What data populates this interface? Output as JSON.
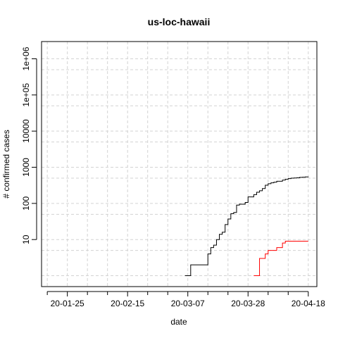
{
  "chart_data": {
    "type": "line",
    "title": "us-loc-hawaii",
    "xlabel": "date",
    "ylabel": "# confirmed cases",
    "y_scale": "log",
    "xlim": [
      "2020-01-16",
      "2020-04-21"
    ],
    "ylim": [
      0.5,
      3000000
    ],
    "x_ticks": [
      {
        "date": "2020-01-25",
        "label": "20-01-25"
      },
      {
        "date": "2020-02-15",
        "label": "20-02-15"
      },
      {
        "date": "2020-03-07",
        "label": "20-03-07"
      },
      {
        "date": "2020-03-28",
        "label": "20-03-28"
      },
      {
        "date": "2020-04-18",
        "label": "20-04-18"
      }
    ],
    "x_minor_ticks": [
      "2020-01-18",
      "2020-02-01",
      "2020-02-08",
      "2020-02-22",
      "2020-02-29",
      "2020-03-14",
      "2020-03-21",
      "2020-04-04",
      "2020-04-11"
    ],
    "y_ticks": [
      {
        "value": 10,
        "label": "10"
      },
      {
        "value": 100,
        "label": "100"
      },
      {
        "value": 1000,
        "label": "1000"
      },
      {
        "value": 10000,
        "label": "10000"
      },
      {
        "value": 100000,
        "label": "1e+05"
      },
      {
        "value": 1000000,
        "label": "1e+06"
      }
    ],
    "y_minor_grid": [
      1,
      5,
      50,
      500,
      5000,
      50000,
      500000
    ],
    "grid": true,
    "series": [
      {
        "color": "#000000",
        "points": [
          [
            "2020-03-06",
            1
          ],
          [
            "2020-03-07",
            1
          ],
          [
            "2020-03-08",
            2
          ],
          [
            "2020-03-11",
            2
          ],
          [
            "2020-03-12",
            2
          ],
          [
            "2020-03-13",
            2
          ],
          [
            "2020-03-14",
            4
          ],
          [
            "2020-03-15",
            6
          ],
          [
            "2020-03-16",
            7
          ],
          [
            "2020-03-17",
            10
          ],
          [
            "2020-03-18",
            14
          ],
          [
            "2020-03-19",
            16
          ],
          [
            "2020-03-20",
            26
          ],
          [
            "2020-03-21",
            37
          ],
          [
            "2020-03-22",
            52
          ],
          [
            "2020-03-23",
            56
          ],
          [
            "2020-03-24",
            90
          ],
          [
            "2020-03-25",
            95
          ],
          [
            "2020-03-26",
            95
          ],
          [
            "2020-03-27",
            106
          ],
          [
            "2020-03-28",
            151
          ],
          [
            "2020-03-29",
            151
          ],
          [
            "2020-03-30",
            175
          ],
          [
            "2020-03-31",
            204
          ],
          [
            "2020-04-01",
            224
          ],
          [
            "2020-04-02",
            258
          ],
          [
            "2020-04-03",
            319
          ],
          [
            "2020-04-04",
            351
          ],
          [
            "2020-04-05",
            371
          ],
          [
            "2020-04-06",
            387
          ],
          [
            "2020-04-07",
            410
          ],
          [
            "2020-04-08",
            410
          ],
          [
            "2020-04-09",
            442
          ],
          [
            "2020-04-10",
            465
          ],
          [
            "2020-04-11",
            486
          ],
          [
            "2020-04-12",
            499
          ],
          [
            "2020-04-13",
            504
          ],
          [
            "2020-04-14",
            511
          ],
          [
            "2020-04-15",
            524
          ],
          [
            "2020-04-16",
            530
          ],
          [
            "2020-04-17",
            541
          ],
          [
            "2020-04-18",
            553
          ]
        ]
      },
      {
        "color": "#ff0000",
        "points": [
          [
            "2020-03-30",
            1
          ],
          [
            "2020-03-31",
            1
          ],
          [
            "2020-04-01",
            3
          ],
          [
            "2020-04-02",
            3
          ],
          [
            "2020-04-03",
            4
          ],
          [
            "2020-04-04",
            5
          ],
          [
            "2020-04-05",
            5
          ],
          [
            "2020-04-06",
            5
          ],
          [
            "2020-04-07",
            6
          ],
          [
            "2020-04-08",
            6
          ],
          [
            "2020-04-09",
            8
          ],
          [
            "2020-04-10",
            9
          ],
          [
            "2020-04-11",
            9
          ],
          [
            "2020-04-12",
            9
          ],
          [
            "2020-04-13",
            9
          ],
          [
            "2020-04-14",
            9
          ],
          [
            "2020-04-15",
            9
          ],
          [
            "2020-04-16",
            9
          ],
          [
            "2020-04-17",
            9
          ],
          [
            "2020-04-18",
            9
          ]
        ]
      }
    ]
  }
}
